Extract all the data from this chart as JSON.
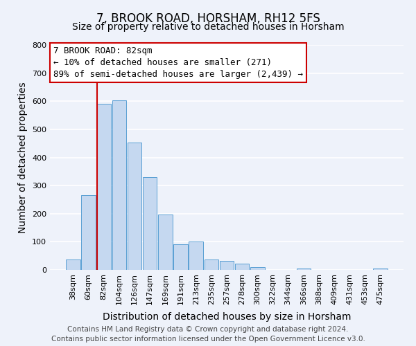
{
  "title": "7, BROOK ROAD, HORSHAM, RH12 5FS",
  "subtitle": "Size of property relative to detached houses in Horsham",
  "xlabel": "Distribution of detached houses by size in Horsham",
  "ylabel": "Number of detached properties",
  "bar_labels": [
    "38sqm",
    "60sqm",
    "82sqm",
    "104sqm",
    "126sqm",
    "147sqm",
    "169sqm",
    "191sqm",
    "213sqm",
    "235sqm",
    "257sqm",
    "278sqm",
    "300sqm",
    "322sqm",
    "344sqm",
    "366sqm",
    "388sqm",
    "409sqm",
    "431sqm",
    "453sqm",
    "475sqm"
  ],
  "bar_values": [
    38,
    265,
    590,
    603,
    452,
    331,
    196,
    91,
    101,
    38,
    32,
    22,
    11,
    0,
    0,
    4,
    0,
    0,
    0,
    0,
    5
  ],
  "bar_color": "#c5d8f0",
  "bar_edge_color": "#5a9fd4",
  "vline_color": "#cc0000",
  "ylim": [
    0,
    800
  ],
  "yticks": [
    0,
    100,
    200,
    300,
    400,
    500,
    600,
    700,
    800
  ],
  "annotation_title": "7 BROOK ROAD: 82sqm",
  "annotation_line1": "← 10% of detached houses are smaller (271)",
  "annotation_line2": "89% of semi-detached houses are larger (2,439) →",
  "annotation_box_color": "#ffffff",
  "annotation_box_edge": "#cc0000",
  "footer_line1": "Contains HM Land Registry data © Crown copyright and database right 2024.",
  "footer_line2": "Contains public sector information licensed under the Open Government Licence v3.0.",
  "background_color": "#eef2fa",
  "grid_color": "#ffffff",
  "title_fontsize": 12,
  "subtitle_fontsize": 10,
  "axis_label_fontsize": 10,
  "tick_fontsize": 8,
  "footer_fontsize": 7.5,
  "annotation_fontsize": 9
}
